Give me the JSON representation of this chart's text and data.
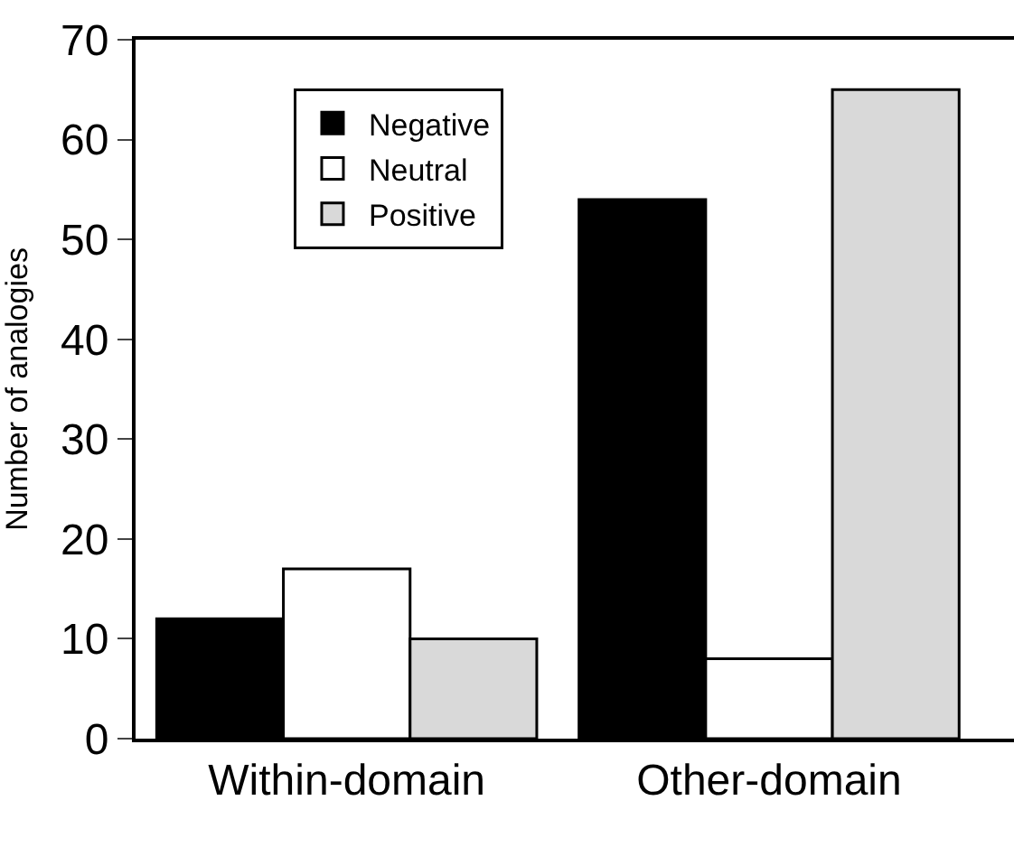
{
  "chart_data": {
    "type": "bar",
    "ylabel": "Number of analogies",
    "categories": [
      "Within-domain",
      "Other-domain"
    ],
    "series": [
      {
        "name": "Negative",
        "color": "#000000",
        "values": [
          12,
          54
        ]
      },
      {
        "name": "Neutral",
        "color": "#ffffff",
        "values": [
          17,
          8
        ]
      },
      {
        "name": "Positive",
        "color": "#d9d9d9",
        "values": [
          10,
          65
        ]
      }
    ],
    "ylim": [
      0,
      70
    ],
    "yticks": [
      0,
      10,
      20,
      30,
      40,
      50,
      60,
      70
    ],
    "grid": false,
    "legend": "top left"
  }
}
